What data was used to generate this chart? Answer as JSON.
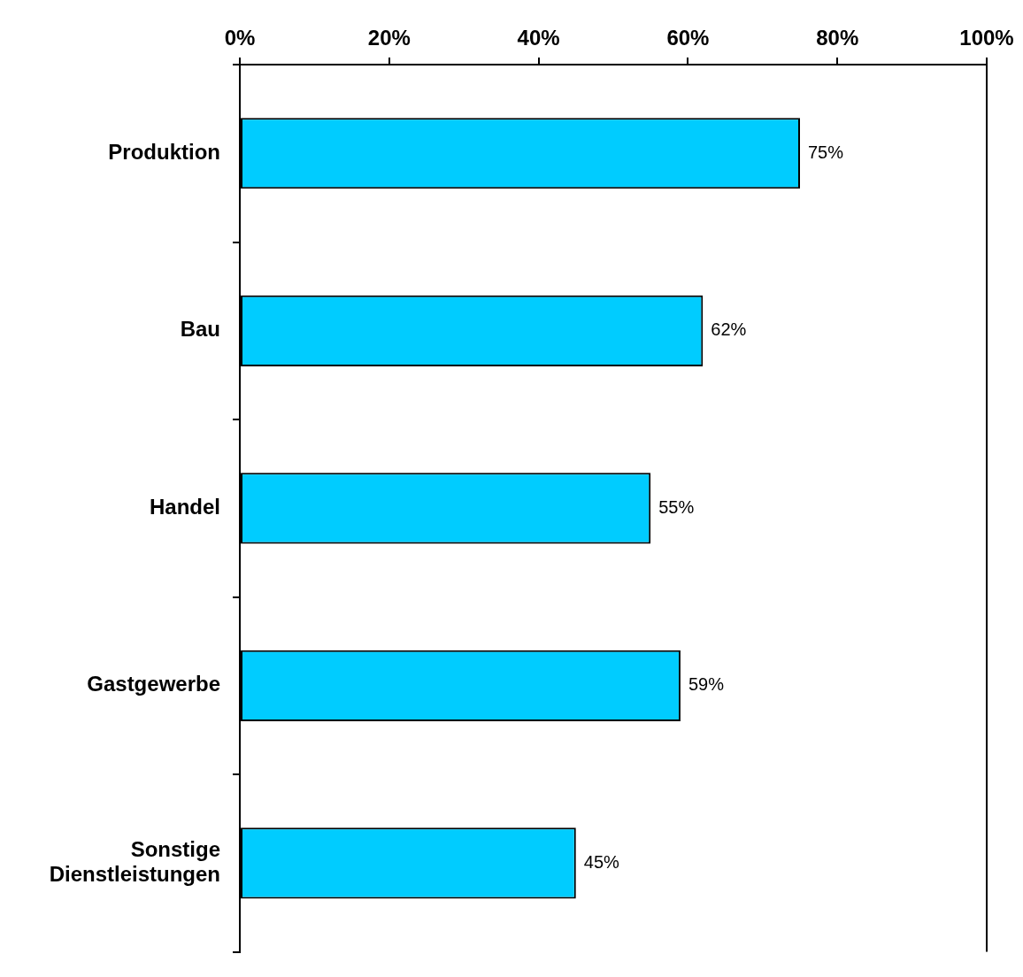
{
  "chart_data": {
    "type": "bar",
    "orientation": "horizontal",
    "categories": [
      "Produktion",
      "Bau",
      "Handel",
      "Gastgewerbe",
      "Sonstige Dienstleistungen"
    ],
    "values": [
      75,
      62,
      55,
      59,
      45
    ],
    "value_labels": [
      "75%",
      "62%",
      "55%",
      "59%",
      "45%"
    ],
    "color": "#00ccff",
    "xlim": [
      0,
      100
    ],
    "xticks": [
      {
        "value": 0,
        "label": "0%"
      },
      {
        "value": 20,
        "label": "20%"
      },
      {
        "value": 40,
        "label": "40%"
      },
      {
        "value": 60,
        "label": "60%"
      },
      {
        "value": 80,
        "label": "80%"
      },
      {
        "value": 100,
        "label": "100%"
      }
    ],
    "grid": false,
    "legend": false
  }
}
